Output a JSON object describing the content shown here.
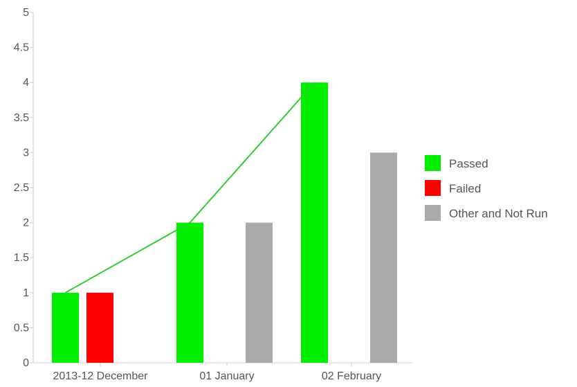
{
  "chart_data": {
    "type": "bar",
    "categories": [
      "2013-12 December",
      "01 January",
      "02 February"
    ],
    "series": [
      {
        "name": "Passed",
        "values": [
          1,
          2,
          4
        ],
        "color": "#00ee00"
      },
      {
        "name": "Failed",
        "values": [
          1,
          0,
          0
        ],
        "color": "#ff0000"
      },
      {
        "name": "Other and Not Run",
        "values": [
          0,
          2,
          3
        ],
        "color": "#aaaaaa"
      }
    ],
    "trend_line": {
      "series": "Passed",
      "values": [
        1,
        2,
        4
      ],
      "color": "#33cc33"
    },
    "ylim": [
      0,
      5
    ],
    "yticks": [
      "0",
      "0.5",
      "1",
      "1.5",
      "2",
      "2.5",
      "3",
      "3.5",
      "4",
      "4.5",
      "5"
    ],
    "legend_position": "right",
    "grid": false
  }
}
